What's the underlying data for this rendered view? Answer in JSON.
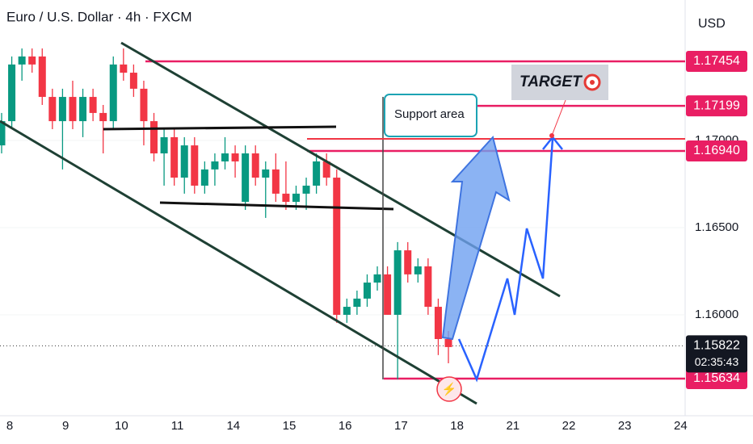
{
  "chart_data": {
    "type": "candlestick",
    "title": "Euro / U.S. Dollar · 4h · FXCM",
    "currency": "USD",
    "annotations": [
      "Support area",
      "TARGET"
    ],
    "categories": [
      "8",
      "9",
      "10",
      "11",
      "14",
      "15",
      "16",
      "17",
      "18",
      "21",
      "22",
      "23",
      "24"
    ],
    "ylim": [
      1.15421,
      1.17806
    ],
    "yticks": [
      {
        "value": 1.16,
        "label": "1.16000"
      },
      {
        "value": 1.165,
        "label": "1.16500"
      },
      {
        "value": 1.17,
        "label": "1.17000"
      }
    ],
    "up_color": "#089981",
    "down_color": "#f23645",
    "level_color": "#e91e63",
    "levels": [
      {
        "value": 1.17454,
        "label": "1.17454"
      },
      {
        "value": 1.17199,
        "label": "1.17199"
      },
      {
        "value": 1.1694,
        "label": "1.16940"
      },
      {
        "value": 1.15634,
        "label": "1.15634"
      }
    ],
    "last_price": {
      "value": 1.15822,
      "label": "1.15822",
      "countdown": "02:35:43"
    },
    "open": [
      1.16972,
      1.17111,
      1.17436,
      1.17482,
      1.17482,
      1.1725,
      1.17111,
      1.1725,
      1.17111,
      1.1725,
      1.17158,
      1.17111,
      1.17436,
      1.17389,
      1.17297,
      1.17111,
      1.16926,
      1.17019,
      1.16787,
      1.16972,
      1.16741,
      1.16834,
      1.1688,
      1.16926,
      1.16648,
      1.16926,
      1.16787,
      1.16834,
      1.16695,
      1.16648,
      1.16695,
      1.16741,
      1.1688,
      1.16787,
      1.16,
      1.16046,
      1.16093,
      1.16185,
      1.16232,
      1.16,
      1.1637,
      1.16232,
      1.16278,
      1.16046,
      1.15861
    ],
    "high": [
      1.17158,
      1.17482,
      1.17528,
      1.17528,
      1.17528,
      1.17297,
      1.17297,
      1.17343,
      1.17297,
      1.17297,
      1.17204,
      1.17482,
      1.17528,
      1.17436,
      1.17343,
      1.17158,
      1.17065,
      1.17065,
      1.17019,
      1.17019,
      1.1688,
      1.16926,
      1.17019,
      1.16972,
      1.16972,
      1.16972,
      1.1688,
      1.16926,
      1.1688,
      1.16741,
      1.16787,
      1.16926,
      1.16926,
      1.16834,
      1.16093,
      1.16139,
      1.16232,
      1.16278,
      1.16278,
      1.16417,
      1.16417,
      1.16324,
      1.16324,
      1.16093,
      1.15907
    ],
    "low": [
      1.16926,
      1.17065,
      1.17343,
      1.17389,
      1.17204,
      1.17065,
      1.16834,
      1.17065,
      1.17019,
      1.17111,
      1.16926,
      1.17065,
      1.17343,
      1.1725,
      1.16972,
      1.1688,
      1.16741,
      1.16741,
      1.16695,
      1.16695,
      1.16695,
      1.16741,
      1.16834,
      1.16787,
      1.16602,
      1.16741,
      1.16556,
      1.16648,
      1.16602,
      1.16602,
      1.16602,
      1.16695,
      1.16741,
      1.15954,
      1.15954,
      1.16,
      1.16046,
      1.16139,
      1.16,
      1.1563,
      1.16185,
      1.16185,
      1.16,
      1.15769,
      1.15722
    ],
    "close": [
      1.17111,
      1.17436,
      1.17482,
      1.17436,
      1.1725,
      1.17111,
      1.1725,
      1.17111,
      1.1725,
      1.17158,
      1.17111,
      1.17436,
      1.17389,
      1.17297,
      1.17111,
      1.16926,
      1.17019,
      1.16787,
      1.16972,
      1.16741,
      1.16834,
      1.1688,
      1.16926,
      1.1688,
      1.16926,
      1.16787,
      1.16834,
      1.16695,
      1.16648,
      1.16695,
      1.16741,
      1.1688,
      1.16787,
      1.16,
      1.16046,
      1.16093,
      1.16185,
      1.16232,
      1.16,
      1.1637,
      1.16232,
      1.16278,
      1.16046,
      1.15861,
      1.15815
    ]
  }
}
